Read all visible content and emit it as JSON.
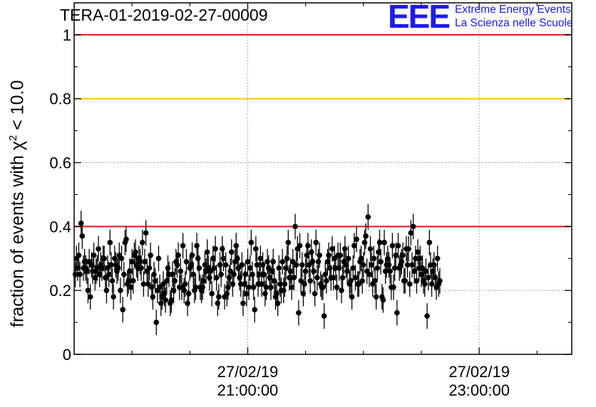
{
  "header": {
    "run_id": "TERA-01-2019-02-27-00009",
    "logo_mark": "EEE",
    "logo_line1": "Extreme Energy Events",
    "logo_line2": "La Scienza nelle Scuole"
  },
  "colors": {
    "red_line": "#e8141c",
    "orange_line": "#ffc800",
    "points": "#000000",
    "logo": "#1c1cf0"
  },
  "chart_data": {
    "type": "scatter",
    "title": "TERA-01-2019-02-27-00009",
    "ylabel_main": "fraction of events with χ",
    "ylabel_sup": "2",
    "ylabel_tail": " < 10.0",
    "xlabel": "",
    "ylim": [
      0,
      1.1
    ],
    "yticks": [
      0,
      0.2,
      0.4,
      0.6,
      0.8,
      1
    ],
    "ytick_labels": [
      "0",
      "0.2",
      "0.4",
      "0.6",
      "0.8",
      "1"
    ],
    "x_range_hours": [
      19.5,
      23.8
    ],
    "xticks": [
      {
        "hour": 21.0,
        "label_date": "27/02/19",
        "label_time": "21:00:00"
      },
      {
        "hour": 23.0,
        "label_date": "27/02/19",
        "label_time": "23:00:00"
      }
    ],
    "x_minor_hours": [
      20.0,
      20.5,
      21.5,
      22.0,
      22.5,
      23.5
    ],
    "grid": true,
    "reference_lines": [
      {
        "y": 1.0,
        "color": "red"
      },
      {
        "y": 0.8,
        "color": "orange"
      },
      {
        "y": 0.4,
        "color": "red"
      }
    ],
    "error_bar": 0.04,
    "x_start_hour": 19.51,
    "x_step_hour": 0.01,
    "values": [
      0.25,
      0.3,
      0.27,
      0.31,
      0.25,
      0.41,
      0.37,
      0.27,
      0.29,
      0.27,
      0.26,
      0.2,
      0.29,
      0.18,
      0.28,
      0.26,
      0.31,
      0.24,
      0.26,
      0.27,
      0.33,
      0.25,
      0.28,
      0.27,
      0.3,
      0.3,
      0.24,
      0.2,
      0.27,
      0.25,
      0.35,
      0.28,
      0.23,
      0.18,
      0.3,
      0.28,
      0.26,
      0.27,
      0.31,
      0.2,
      0.3,
      0.14,
      0.25,
      0.35,
      0.36,
      0.22,
      0.23,
      0.26,
      0.21,
      0.29,
      0.23,
      0.31,
      0.32,
      0.28,
      0.27,
      0.3,
      0.29,
      0.27,
      0.35,
      0.22,
      0.29,
      0.38,
      0.26,
      0.22,
      0.27,
      0.31,
      0.21,
      0.18,
      0.25,
      0.23,
      0.1,
      0.2,
      0.3,
      0.21,
      0.16,
      0.18,
      0.22,
      0.19,
      0.17,
      0.23,
      0.27,
      0.25,
      0.16,
      0.17,
      0.25,
      0.2,
      0.23,
      0.29,
      0.28,
      0.31,
      0.21,
      0.26,
      0.21,
      0.34,
      0.2,
      0.22,
      0.29,
      0.16,
      0.19,
      0.27,
      0.28,
      0.31,
      0.25,
      0.2,
      0.21,
      0.34,
      0.3,
      0.27,
      0.21,
      0.2,
      0.21,
      0.23,
      0.28,
      0.26,
      0.32,
      0.27,
      0.24,
      0.26,
      0.19,
      0.3,
      0.27,
      0.33,
      0.24,
      0.16,
      0.18,
      0.28,
      0.25,
      0.33,
      0.3,
      0.18,
      0.28,
      0.19,
      0.21,
      0.24,
      0.26,
      0.32,
      0.22,
      0.25,
      0.29,
      0.34,
      0.3,
      0.27,
      0.24,
      0.22,
      0.28,
      0.16,
      0.22,
      0.25,
      0.19,
      0.29,
      0.21,
      0.27,
      0.35,
      0.25,
      0.21,
      0.14,
      0.33,
      0.28,
      0.22,
      0.25,
      0.3,
      0.22,
      0.28,
      0.25,
      0.19,
      0.21,
      0.29,
      0.27,
      0.24,
      0.21,
      0.26,
      0.29,
      0.23,
      0.18,
      0.19,
      0.16,
      0.27,
      0.22,
      0.2,
      0.29,
      0.2,
      0.22,
      0.27,
      0.3,
      0.35,
      0.24,
      0.26,
      0.21,
      0.29,
      0.24,
      0.4,
      0.28,
      0.33,
      0.13,
      0.34,
      0.23,
      0.28,
      0.19,
      0.22,
      0.26,
      0.31,
      0.34,
      0.28,
      0.23,
      0.32,
      0.29,
      0.26,
      0.19,
      0.35,
      0.24,
      0.29,
      0.31,
      0.22,
      0.21,
      0.21,
      0.12,
      0.25,
      0.23,
      0.29,
      0.31,
      0.27,
      0.24,
      0.33,
      0.24,
      0.3,
      0.27,
      0.21,
      0.31,
      0.27,
      0.31,
      0.2,
      0.24,
      0.29,
      0.33,
      0.28,
      0.26,
      0.3,
      0.22,
      0.23,
      0.18,
      0.27,
      0.34,
      0.24,
      0.36,
      0.22,
      0.22,
      0.29,
      0.3,
      0.23,
      0.28,
      0.35,
      0.37,
      0.26,
      0.43,
      0.25,
      0.33,
      0.28,
      0.22,
      0.3,
      0.23,
      0.18,
      0.27,
      0.32,
      0.35,
      0.29,
      0.18,
      0.17,
      0.35,
      0.26,
      0.28,
      0.3,
      0.28,
      0.26,
      0.21,
      0.34,
      0.21,
      0.27,
      0.31,
      0.13,
      0.34,
      0.27,
      0.28,
      0.29,
      0.31,
      0.23,
      0.23,
      0.33,
      0.28,
      0.33,
      0.22,
      0.38,
      0.28,
      0.4,
      0.26,
      0.3,
      0.23,
      0.32,
      0.27,
      0.3,
      0.25,
      0.27,
      0.23,
      0.22,
      0.26,
      0.12,
      0.24,
      0.35,
      0.28,
      0.22,
      0.26,
      0.28,
      0.24,
      0.21,
      0.3,
      0.22,
      0.23
    ]
  }
}
